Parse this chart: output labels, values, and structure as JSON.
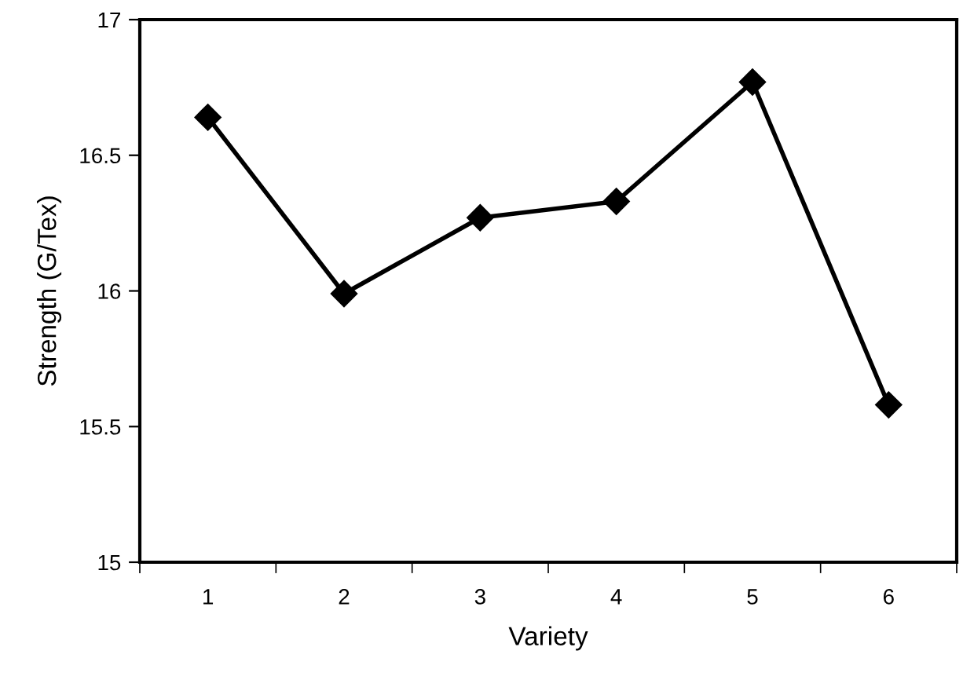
{
  "chart_data": {
    "type": "line",
    "xlabel": "Variety",
    "ylabel": "Strength (G/Tex)",
    "categories": [
      "1",
      "2",
      "3",
      "4",
      "5",
      "6"
    ],
    "series": [
      {
        "color": "#000000",
        "values": [
          16.64,
          15.99,
          16.27,
          16.33,
          16.77,
          15.58
        ]
      }
    ],
    "ylim": [
      15,
      17
    ],
    "yticks": [
      15,
      15.5,
      16,
      16.5,
      17
    ],
    "marker": "diamond",
    "line_style": "solid",
    "grid": false,
    "legend": false
  }
}
